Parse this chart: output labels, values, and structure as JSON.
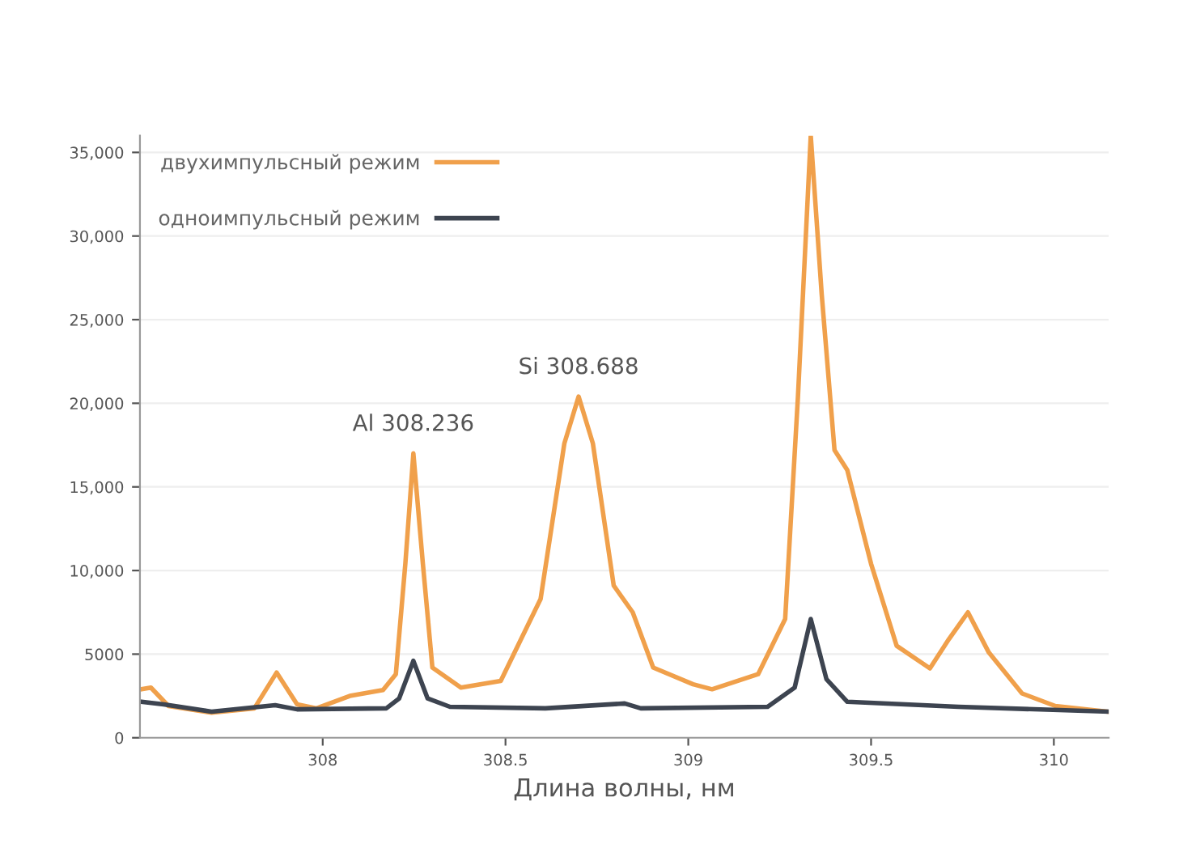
{
  "chart_data": {
    "type": "line",
    "xlabel": "Длина волны, нм",
    "xlim": [
      307.5,
      310.15
    ],
    "xticks": [
      308,
      308.5,
      309,
      309.5,
      310
    ],
    "ylim": [
      0,
      36000
    ],
    "yticks": [
      0,
      {
        "value": 5000,
        "label": "5000"
      },
      {
        "value": 10000,
        "label": "10,000"
      },
      {
        "value": 15000,
        "label": "15,000"
      },
      {
        "value": 20000,
        "label": "20,000"
      },
      {
        "value": 25000,
        "label": "25,000"
      },
      {
        "value": 30000,
        "label": "30,000"
      },
      {
        "value": 35000,
        "label": "35,000"
      }
    ],
    "grid": "y",
    "legend": "top left",
    "marker": "none",
    "line_style": "solid",
    "series": [
      {
        "name": "двухимпульсный режим",
        "color": "#f0a04b",
        "x": [
          307.504,
          307.53,
          307.578,
          307.696,
          307.813,
          307.874,
          307.93,
          307.983,
          308.074,
          308.165,
          308.2,
          308.226,
          308.248,
          308.274,
          308.3,
          308.378,
          308.487,
          308.596,
          308.661,
          308.7,
          308.739,
          308.796,
          308.848,
          308.904,
          309.013,
          309.065,
          309.191,
          309.265,
          309.3,
          309.335,
          309.365,
          309.4,
          309.435,
          309.5,
          309.57,
          309.661,
          309.713,
          309.765,
          309.822,
          309.913,
          310.004,
          310.148
        ],
        "values": [
          2900,
          3000,
          1900,
          1500,
          1760,
          3900,
          2000,
          1760,
          2500,
          2850,
          3800,
          10400,
          17000,
          10400,
          4200,
          3000,
          3400,
          8300,
          17600,
          20400,
          17600,
          9100,
          7500,
          4200,
          3200,
          2900,
          3800,
          7100,
          20400,
          36000,
          26500,
          17200,
          16000,
          10400,
          5500,
          4150,
          5900,
          7500,
          5100,
          2650,
          1900,
          1560
        ]
      },
      {
        "name": "одноимпульсный режим",
        "color": "#3d4450",
        "x": [
          307.504,
          307.565,
          307.696,
          307.87,
          307.93,
          308.174,
          308.209,
          308.248,
          308.287,
          308.348,
          308.609,
          308.826,
          308.87,
          309.217,
          309.291,
          309.335,
          309.378,
          309.435,
          309.739,
          310.148
        ],
        "values": [
          2150,
          2000,
          1560,
          1950,
          1700,
          1760,
          2350,
          4600,
          2350,
          1850,
          1760,
          2050,
          1760,
          1850,
          3000,
          7100,
          3500,
          2150,
          1850,
          1560
        ]
      }
    ],
    "annotations": [
      {
        "text": "Al 308.236",
        "x": 308.248,
        "y": 17000
      },
      {
        "text": "Si 308.688",
        "x": 308.7,
        "y": 20400
      }
    ]
  }
}
